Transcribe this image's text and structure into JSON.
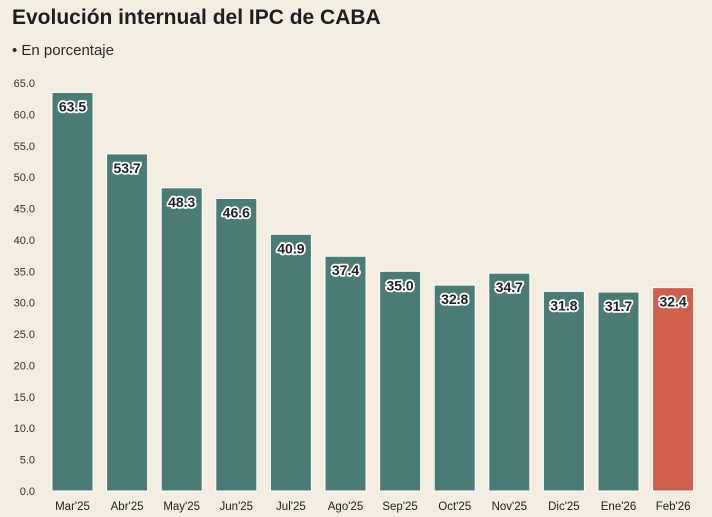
{
  "chart_data": {
    "type": "bar",
    "title": "Evolución internual del IPC de CABA",
    "subtitle": "• En porcentaje",
    "categories": [
      "Mar'25",
      "Abr'25",
      "May'25",
      "Jun'25",
      "Jul'25",
      "Ago'25",
      "Sep'25",
      "Oct'25",
      "Nov'25",
      "Dic'25",
      "Ene'26",
      "Feb'26"
    ],
    "values": [
      63.5,
      53.7,
      48.3,
      46.6,
      40.9,
      37.4,
      35.0,
      32.8,
      34.7,
      31.8,
      31.7,
      32.4
    ],
    "value_labels": [
      "63.5",
      "53.7",
      "48.3",
      "46.6",
      "40.9",
      "37.4",
      "35.0",
      "32.8",
      "34.7",
      "31.8",
      "31.7",
      "32.4"
    ],
    "ylim": [
      0,
      65
    ],
    "yticks": [
      "0.0",
      "5.0",
      "10.0",
      "15.0",
      "20.0",
      "25.0",
      "30.0",
      "35.0",
      "40.0",
      "45.0",
      "50.0",
      "55.0",
      "60.0",
      "65.0"
    ],
    "xlabel": "",
    "ylabel": "",
    "grid": false,
    "legend": "none",
    "colors": {
      "bar": "#4a7b75",
      "highlight": "#d05f4d",
      "bar_edge": "#ffffff",
      "background": "#f3ede2"
    },
    "highlight_index": 11
  }
}
